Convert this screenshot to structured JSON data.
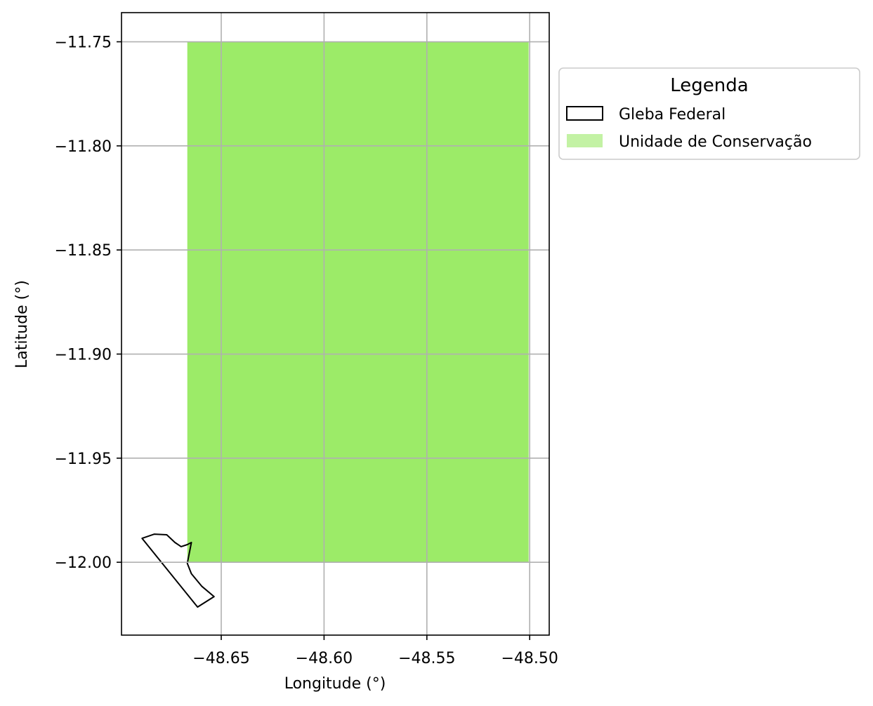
{
  "chart_data": {
    "type": "map",
    "xlabel": "Longitude (°)",
    "ylabel": "Latitude (°)",
    "xlim": [
      -48.6985,
      -48.4905
    ],
    "ylim": [
      -12.035,
      -11.736
    ],
    "grid": true,
    "x_ticks": [
      -48.65,
      -48.6,
      -48.55,
      -48.5
    ],
    "y_ticks": [
      -11.75,
      -11.8,
      -11.85,
      -11.9,
      -11.95,
      -12.0
    ],
    "x_tick_labels": [
      "−48.65",
      "−48.60",
      "−48.55",
      "−48.50"
    ],
    "y_tick_labels": [
      "−11.75",
      "−11.80",
      "−11.85",
      "−11.90",
      "−11.95",
      "−12.00"
    ],
    "legend": {
      "title": "Legenda",
      "placement": "outside-upper-right",
      "entries": [
        {
          "label": "Gleba Federal",
          "style": "outline",
          "color": "#000000"
        },
        {
          "label": "Unidade de Conservação",
          "style": "fill",
          "color": "#9ceb68"
        }
      ]
    },
    "layers": [
      {
        "name": "Unidade de Conservação",
        "fill": "#9ceb68",
        "polygon": [
          [
            -48.6665,
            -11.75
          ],
          [
            -48.5005,
            -11.75
          ],
          [
            -48.5005,
            -12.0
          ],
          [
            -48.6665,
            -12.0
          ]
        ]
      },
      {
        "name": "Gleba Federal",
        "stroke": "#000000",
        "polygon": [
          [
            -48.6885,
            -11.9885
          ],
          [
            -48.6825,
            -11.9865
          ],
          [
            -48.6765,
            -11.9868
          ],
          [
            -48.6725,
            -11.9905
          ],
          [
            -48.6695,
            -11.9925
          ],
          [
            -48.6665,
            -11.9915
          ],
          [
            -48.6645,
            -11.9905
          ],
          [
            -48.6665,
            -12.0005
          ],
          [
            -48.6645,
            -12.0055
          ],
          [
            -48.6595,
            -12.0115
          ],
          [
            -48.6535,
            -12.0165
          ],
          [
            -48.6615,
            -12.0215
          ]
        ]
      }
    ]
  }
}
